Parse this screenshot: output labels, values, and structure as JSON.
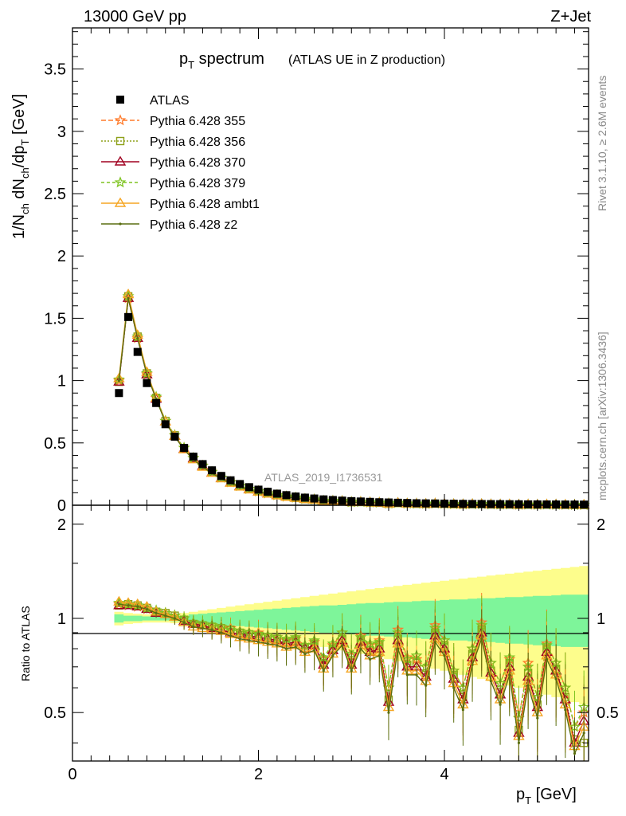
{
  "header": {
    "left": "13000 GeV pp",
    "right": "Z+Jet"
  },
  "side_texts": {
    "rivet": "Rivet 3.1.10, ≥ 2.6M events",
    "mcplots": "mcplots.cern.ch [arXiv:1306.3436]"
  },
  "chart_data": {
    "type": "line",
    "title": "p_T spectrum",
    "title_main": "p",
    "title_sub": "T",
    "title_word": " spectrum",
    "subtitle": "(ATLAS UE in Z production)",
    "analysis_label": "ATLAS_2019_I1736531",
    "xlabel": "p_T [GeV]",
    "xlabel_main": "p",
    "xlabel_sub": "T",
    "xlabel_unit": " [GeV]",
    "ylabel": "1/N_ch dN_ch/dp_T [GeV]",
    "ylabel_parts": {
      "a": "1/N",
      "b": "ch",
      "c": " dN",
      "d": "ch",
      "e": "/dp",
      "f": "T",
      "g": " [GeV]"
    },
    "ratio_ylabel": "Ratio to ATLAS",
    "xlim": [
      0,
      5.55
    ],
    "ylim": [
      0,
      3.83
    ],
    "ratio_ylim": [
      0.35,
      2.3
    ],
    "x_ticks": [
      0,
      2,
      4
    ],
    "y_ticks": [
      0,
      0.5,
      1,
      1.5,
      2,
      2.5,
      3,
      3.5
    ],
    "ratio_ticks": [
      0.5,
      1,
      2
    ],
    "x": [
      0.5,
      0.6,
      0.7,
      0.8,
      0.9,
      1.0,
      1.1,
      1.2,
      1.3,
      1.4,
      1.5,
      1.6,
      1.7,
      1.8,
      1.9,
      2.0,
      2.1,
      2.2,
      2.3,
      2.4,
      2.5,
      2.6,
      2.7,
      2.8,
      2.9,
      3.0,
      3.1,
      3.2,
      3.3,
      3.4,
      3.5,
      3.6,
      3.7,
      3.8,
      3.9,
      4.0,
      4.1,
      4.2,
      4.3,
      4.4,
      4.5,
      4.6,
      4.7,
      4.8,
      4.9,
      5.0,
      5.1,
      5.2,
      5.3,
      5.4,
      5.5
    ],
    "data": {
      "name": "ATLAS",
      "values": [
        0.9,
        1.51,
        1.23,
        0.98,
        0.82,
        0.65,
        0.55,
        0.46,
        0.39,
        0.33,
        0.28,
        0.235,
        0.2,
        0.17,
        0.145,
        0.125,
        0.108,
        0.093,
        0.081,
        0.07,
        0.061,
        0.054,
        0.047,
        0.042,
        0.037,
        0.033,
        0.03,
        0.027,
        0.024,
        0.022,
        0.02,
        0.018,
        0.016,
        0.015,
        0.014,
        0.013,
        0.012,
        0.011,
        0.01,
        0.0095,
        0.009,
        0.0085,
        0.008,
        0.0075,
        0.007,
        0.0066,
        0.0062,
        0.0058,
        0.0055,
        0.0052,
        0.005
      ]
    },
    "uncertainty_bands": {
      "inner_color": "#7ef59a",
      "outer_color": "#fdfd8c",
      "inner": [
        0.03,
        0.02,
        0.02,
        0.015,
        0.015,
        0.015,
        0.02,
        0.02,
        0.03,
        0.035,
        0.04,
        0.045,
        0.05,
        0.055,
        0.06,
        0.065,
        0.07,
        0.075,
        0.08,
        0.085,
        0.09,
        0.095,
        0.1,
        0.1,
        0.105,
        0.11,
        0.115,
        0.12,
        0.12,
        0.125,
        0.13,
        0.13,
        0.135,
        0.14,
        0.14,
        0.145,
        0.15,
        0.15,
        0.155,
        0.16,
        0.16,
        0.165,
        0.17,
        0.17,
        0.175,
        0.18,
        0.18,
        0.185,
        0.19,
        0.19,
        0.19
      ],
      "outer": [
        0.05,
        0.04,
        0.035,
        0.03,
        0.03,
        0.03,
        0.035,
        0.04,
        0.05,
        0.06,
        0.07,
        0.08,
        0.09,
        0.1,
        0.11,
        0.12,
        0.13,
        0.14,
        0.15,
        0.16,
        0.17,
        0.18,
        0.19,
        0.2,
        0.21,
        0.22,
        0.23,
        0.24,
        0.25,
        0.26,
        0.27,
        0.28,
        0.29,
        0.3,
        0.31,
        0.32,
        0.33,
        0.34,
        0.35,
        0.36,
        0.37,
        0.38,
        0.39,
        0.4,
        0.41,
        0.42,
        0.43,
        0.44,
        0.45,
        0.46,
        0.47
      ]
    },
    "series": [
      {
        "name": "Pythia 6.428 355",
        "color": "#ff7a2a",
        "dash": "6,3",
        "marker": "star",
        "ratio": [
          1.11,
          1.1,
          1.09,
          1.07,
          1.05,
          1.04,
          1.02,
          1.0,
          0.97,
          0.96,
          0.95,
          0.94,
          0.93,
          0.91,
          0.9,
          0.9,
          0.88,
          0.87,
          0.85,
          0.86,
          0.82,
          0.84,
          0.74,
          0.82,
          0.9,
          0.76,
          0.88,
          0.82,
          0.85,
          0.6,
          0.92,
          0.75,
          0.74,
          0.7,
          0.95,
          0.85,
          0.68,
          0.6,
          0.8,
          0.97,
          0.72,
          0.62,
          0.74,
          0.48,
          0.72,
          0.56,
          0.83,
          0.72,
          0.6,
          0.45,
          0.5
        ]
      },
      {
        "name": "Pythia 6.428 356",
        "color": "#8da019",
        "dash": "2,2",
        "marker": "square",
        "ratio": [
          1.1,
          1.11,
          1.1,
          1.08,
          1.05,
          1.04,
          1.02,
          0.99,
          0.96,
          0.95,
          0.94,
          0.93,
          0.92,
          0.9,
          0.89,
          0.88,
          0.87,
          0.86,
          0.84,
          0.85,
          0.8,
          0.83,
          0.72,
          0.8,
          0.86,
          0.72,
          0.85,
          0.79,
          0.82,
          0.55,
          0.86,
          0.71,
          0.72,
          0.66,
          0.9,
          0.82,
          0.66,
          0.56,
          0.77,
          0.92,
          0.68,
          0.58,
          0.72,
          0.44,
          0.67,
          0.53,
          0.8,
          0.69,
          0.56,
          0.41,
          0.4
        ]
      },
      {
        "name": "Pythia 6.428 370",
        "color": "#a00020",
        "dash": "",
        "marker": "triangle",
        "ratio": [
          1.1,
          1.1,
          1.09,
          1.07,
          1.04,
          1.03,
          1.01,
          0.98,
          0.96,
          0.95,
          0.93,
          0.92,
          0.9,
          0.89,
          0.88,
          0.87,
          0.86,
          0.85,
          0.83,
          0.84,
          0.8,
          0.82,
          0.71,
          0.79,
          0.85,
          0.71,
          0.84,
          0.78,
          0.8,
          0.54,
          0.85,
          0.7,
          0.7,
          0.65,
          0.88,
          0.8,
          0.64,
          0.55,
          0.75,
          0.9,
          0.67,
          0.57,
          0.7,
          0.43,
          0.65,
          0.52,
          0.78,
          0.68,
          0.55,
          0.4,
          0.47
        ]
      },
      {
        "name": "Pythia 6.428 379",
        "color": "#7ec420",
        "dash": "4,3",
        "marker": "star",
        "ratio": [
          1.12,
          1.11,
          1.1,
          1.08,
          1.06,
          1.04,
          1.02,
          1.0,
          0.97,
          0.96,
          0.95,
          0.94,
          0.92,
          0.91,
          0.9,
          0.89,
          0.88,
          0.87,
          0.86,
          0.87,
          0.82,
          0.85,
          0.75,
          0.83,
          0.9,
          0.77,
          0.87,
          0.83,
          0.84,
          0.6,
          0.9,
          0.74,
          0.76,
          0.7,
          0.93,
          0.85,
          0.68,
          0.6,
          0.8,
          0.95,
          0.72,
          0.62,
          0.75,
          0.48,
          0.7,
          0.56,
          0.82,
          0.72,
          0.6,
          0.45,
          0.52
        ]
      },
      {
        "name": "Pythia 6.428 ambt1",
        "color": "#f5a623",
        "dash": "",
        "marker": "triangle",
        "ratio": [
          1.13,
          1.12,
          1.11,
          1.09,
          1.05,
          1.03,
          1.01,
          0.97,
          0.94,
          0.93,
          0.92,
          0.91,
          0.89,
          0.87,
          0.86,
          0.85,
          0.84,
          0.83,
          0.81,
          0.82,
          0.78,
          0.8,
          0.69,
          0.77,
          0.83,
          0.69,
          0.82,
          0.76,
          0.78,
          0.52,
          0.83,
          0.68,
          0.68,
          0.63,
          0.86,
          0.78,
          0.62,
          0.53,
          0.73,
          0.88,
          0.65,
          0.55,
          0.68,
          0.42,
          0.63,
          0.5,
          0.76,
          0.66,
          0.53,
          0.39,
          0.45
        ]
      },
      {
        "name": "Pythia 6.428 z2",
        "color": "#5a6e10",
        "dash": "",
        "marker": "dot",
        "ratio": [
          1.11,
          1.1,
          1.09,
          1.07,
          1.04,
          1.02,
          1.0,
          0.97,
          0.94,
          0.93,
          0.92,
          0.9,
          0.88,
          0.86,
          0.85,
          0.84,
          0.83,
          0.82,
          0.8,
          0.81,
          0.77,
          0.79,
          0.68,
          0.76,
          0.82,
          0.68,
          0.8,
          0.74,
          0.76,
          0.5,
          0.8,
          0.66,
          0.66,
          0.61,
          0.84,
          0.76,
          0.6,
          0.51,
          0.71,
          0.86,
          0.63,
          0.53,
          0.66,
          0.4,
          0.61,
          0.48,
          0.74,
          0.64,
          0.51,
          0.37,
          0.43
        ]
      }
    ]
  }
}
